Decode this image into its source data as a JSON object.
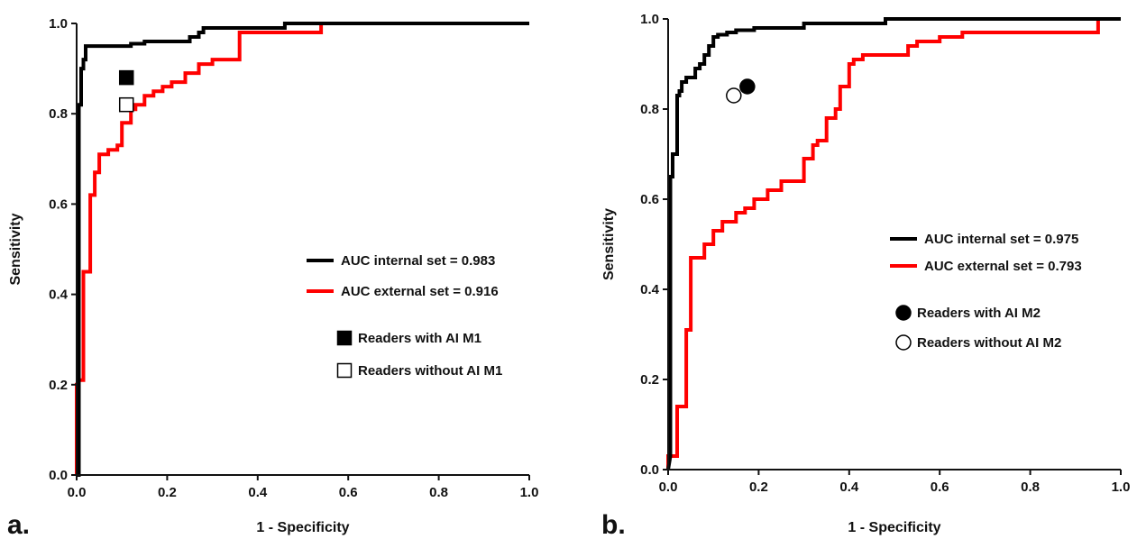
{
  "chart_data": [
    {
      "type": "line",
      "panel_label": "a.",
      "xlabel": "1 - Specificity",
      "ylabel": "Sensitivity",
      "xlim": [
        0,
        1
      ],
      "ylim": [
        0,
        1
      ],
      "xticks": [
        "0.0",
        "0.2",
        "0.4",
        "0.6",
        "0.8",
        "1.0"
      ],
      "yticks": [
        "0.0",
        "0.2",
        "0.4",
        "0.6",
        "0.8",
        "1.0"
      ],
      "grid": false,
      "legend_position": "center-right",
      "series": [
        {
          "name": "AUC internal set = 0.983",
          "color": "#000000",
          "x": [
            0,
            0.005,
            0.005,
            0.01,
            0.01,
            0.015,
            0.015,
            0.02,
            0.02,
            0.12,
            0.12,
            0.15,
            0.15,
            0.25,
            0.25,
            0.27,
            0.27,
            0.28,
            0.28,
            0.46,
            0.46,
            1.0
          ],
          "y": [
            0,
            0,
            0.82,
            0.82,
            0.9,
            0.9,
            0.92,
            0.92,
            0.95,
            0.95,
            0.955,
            0.955,
            0.96,
            0.96,
            0.97,
            0.97,
            0.98,
            0.98,
            0.99,
            0.99,
            1.0,
            1.0
          ]
        },
        {
          "name": "AUC external set = 0.916",
          "color": "#ff0000",
          "x": [
            0,
            0,
            0.005,
            0.005,
            0.015,
            0.015,
            0.03,
            0.03,
            0.04,
            0.04,
            0.05,
            0.05,
            0.07,
            0.07,
            0.09,
            0.09,
            0.1,
            0.1,
            0.12,
            0.12,
            0.13,
            0.13,
            0.15,
            0.15,
            0.17,
            0.17,
            0.19,
            0.19,
            0.21,
            0.21,
            0.24,
            0.24,
            0.27,
            0.27,
            0.3,
            0.3,
            0.36,
            0.36,
            0.54,
            0.54,
            1.0
          ],
          "y": [
            0,
            0.2,
            0.2,
            0.21,
            0.21,
            0.45,
            0.45,
            0.62,
            0.62,
            0.67,
            0.67,
            0.71,
            0.71,
            0.72,
            0.72,
            0.73,
            0.73,
            0.78,
            0.78,
            0.81,
            0.81,
            0.82,
            0.82,
            0.84,
            0.84,
            0.85,
            0.85,
            0.86,
            0.86,
            0.87,
            0.87,
            0.89,
            0.89,
            0.91,
            0.91,
            0.92,
            0.92,
            0.98,
            0.98,
            1.0,
            1.0
          ]
        }
      ],
      "points": [
        {
          "name": "Readers with AI M1",
          "x": 0.11,
          "y": 0.88,
          "marker": "square",
          "filled": true
        },
        {
          "name": "Readers without AI M1",
          "x": 0.11,
          "y": 0.82,
          "marker": "square",
          "filled": false
        }
      ]
    },
    {
      "type": "line",
      "panel_label": "b.",
      "xlabel": "1 - Specificity",
      "ylabel": "Sensitivity",
      "xlim": [
        0,
        1
      ],
      "ylim": [
        0,
        1
      ],
      "xticks": [
        "0.0",
        "0.2",
        "0.4",
        "0.6",
        "0.8",
        "1.0"
      ],
      "yticks": [
        "0.0",
        "0.2",
        "0.4",
        "0.6",
        "0.8",
        "1.0"
      ],
      "grid": false,
      "legend_position": "center-right",
      "series": [
        {
          "name": "AUC internal set = 0.975",
          "color": "#000000",
          "x": [
            0,
            0.005,
            0.005,
            0.01,
            0.01,
            0.02,
            0.02,
            0.025,
            0.025,
            0.03,
            0.03,
            0.04,
            0.04,
            0.06,
            0.06,
            0.07,
            0.07,
            0.08,
            0.08,
            0.09,
            0.09,
            0.1,
            0.1,
            0.11,
            0.11,
            0.13,
            0.13,
            0.15,
            0.15,
            0.19,
            0.19,
            0.3,
            0.3,
            0.48,
            0.48,
            0.95,
            0.95,
            1.0
          ],
          "y": [
            0,
            0.03,
            0.65,
            0.65,
            0.7,
            0.7,
            0.83,
            0.83,
            0.84,
            0.84,
            0.86,
            0.86,
            0.87,
            0.87,
            0.89,
            0.89,
            0.9,
            0.9,
            0.92,
            0.92,
            0.94,
            0.94,
            0.96,
            0.96,
            0.965,
            0.965,
            0.97,
            0.97,
            0.975,
            0.975,
            0.98,
            0.98,
            0.99,
            0.99,
            1.0,
            1.0,
            1.0,
            1.0
          ]
        },
        {
          "name": "AUC external set = 0.793",
          "color": "#ff0000",
          "x": [
            0,
            0,
            0.02,
            0.02,
            0.04,
            0.04,
            0.05,
            0.05,
            0.08,
            0.08,
            0.1,
            0.1,
            0.12,
            0.12,
            0.15,
            0.15,
            0.17,
            0.17,
            0.19,
            0.19,
            0.22,
            0.22,
            0.25,
            0.25,
            0.27,
            0.27,
            0.3,
            0.3,
            0.32,
            0.32,
            0.33,
            0.33,
            0.35,
            0.35,
            0.37,
            0.37,
            0.38,
            0.38,
            0.4,
            0.4,
            0.41,
            0.41,
            0.43,
            0.43,
            0.53,
            0.53,
            0.55,
            0.55,
            0.6,
            0.6,
            0.65,
            0.65,
            0.95,
            0.95,
            1.0
          ],
          "y": [
            0,
            0.03,
            0.03,
            0.14,
            0.14,
            0.31,
            0.31,
            0.47,
            0.47,
            0.5,
            0.5,
            0.53,
            0.53,
            0.55,
            0.55,
            0.57,
            0.57,
            0.58,
            0.58,
            0.6,
            0.6,
            0.62,
            0.62,
            0.64,
            0.64,
            0.64,
            0.64,
            0.69,
            0.69,
            0.72,
            0.72,
            0.73,
            0.73,
            0.78,
            0.78,
            0.8,
            0.8,
            0.85,
            0.85,
            0.9,
            0.9,
            0.91,
            0.91,
            0.92,
            0.92,
            0.94,
            0.94,
            0.95,
            0.95,
            0.96,
            0.96,
            0.97,
            0.97,
            1.0,
            1.0
          ]
        }
      ],
      "points": [
        {
          "name": "Readers with AI M2",
          "x": 0.175,
          "y": 0.85,
          "marker": "circle",
          "filled": true
        },
        {
          "name": "Readers without AI M2",
          "x": 0.145,
          "y": 0.83,
          "marker": "circle",
          "filled": false
        }
      ]
    }
  ]
}
